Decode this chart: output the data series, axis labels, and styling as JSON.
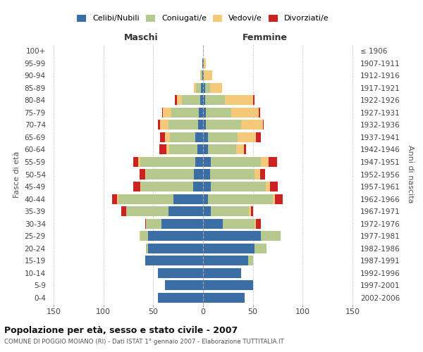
{
  "age_groups": [
    "0-4",
    "5-9",
    "10-14",
    "15-19",
    "20-24",
    "25-29",
    "30-34",
    "35-39",
    "40-44",
    "45-49",
    "50-54",
    "55-59",
    "60-64",
    "65-69",
    "70-74",
    "75-79",
    "80-84",
    "85-89",
    "90-94",
    "95-99",
    "100+"
  ],
  "year_ranges": [
    "2002-2006",
    "1997-2001",
    "1992-1996",
    "1987-1991",
    "1982-1986",
    "1977-1981",
    "1972-1976",
    "1967-1971",
    "1962-1966",
    "1957-1961",
    "1952-1956",
    "1947-1951",
    "1942-1946",
    "1937-1941",
    "1932-1936",
    "1927-1931",
    "1922-1926",
    "1917-1921",
    "1912-1916",
    "1907-1911",
    "≤ 1906"
  ],
  "maschi": {
    "celibe": [
      45,
      38,
      45,
      58,
      55,
      55,
      42,
      35,
      30,
      10,
      9,
      8,
      6,
      8,
      5,
      4,
      3,
      2,
      1,
      1,
      0
    ],
    "coniugato": [
      0,
      0,
      0,
      0,
      2,
      8,
      15,
      42,
      55,
      52,
      48,
      55,
      28,
      25,
      30,
      28,
      18,
      5,
      1,
      0,
      0
    ],
    "vedovo": [
      0,
      0,
      0,
      0,
      0,
      1,
      0,
      0,
      1,
      1,
      1,
      2,
      3,
      5,
      8,
      8,
      5,
      2,
      1,
      0,
      0
    ],
    "divorziato": [
      0,
      0,
      0,
      0,
      0,
      0,
      1,
      5,
      5,
      7,
      6,
      5,
      7,
      5,
      2,
      1,
      2,
      0,
      0,
      0,
      0
    ]
  },
  "femmine": {
    "nubile": [
      42,
      50,
      38,
      45,
      52,
      58,
      20,
      8,
      5,
      8,
      7,
      8,
      5,
      5,
      3,
      3,
      2,
      2,
      1,
      1,
      0
    ],
    "coniugata": [
      0,
      0,
      0,
      5,
      12,
      20,
      32,
      38,
      65,
      55,
      45,
      50,
      28,
      30,
      35,
      25,
      20,
      5,
      0,
      0,
      0
    ],
    "vedova": [
      0,
      0,
      0,
      0,
      0,
      0,
      1,
      2,
      2,
      4,
      5,
      8,
      8,
      18,
      22,
      28,
      28,
      12,
      8,
      2,
      0
    ],
    "divorziata": [
      0,
      0,
      0,
      0,
      0,
      0,
      5,
      2,
      8,
      8,
      5,
      8,
      2,
      5,
      1,
      1,
      2,
      0,
      0,
      0,
      0
    ]
  },
  "colors": {
    "celibe": "#3a6ea5",
    "coniugato": "#b5c98e",
    "vedovo": "#f5c97a",
    "divorziato": "#cc2222"
  },
  "xlim": 155,
  "title": "Popolazione per età, sesso e stato civile - 2007",
  "subtitle": "COMUNE DI POGGIO MOIANO (RI) - Dati ISTAT 1° gennaio 2007 - Elaborazione TUTTITALIA.IT",
  "ylabel_left": "Fasce di età",
  "ylabel_right": "Anni di nascita",
  "label_maschi": "Maschi",
  "label_femmine": "Femmine",
  "legend": [
    "Celibi/Nubili",
    "Coniugati/e",
    "Vedovi/e",
    "Divorziati/e"
  ],
  "bg_color": "#ffffff",
  "grid_color": "#cccccc",
  "xticks": [
    -150,
    -100,
    -50,
    0,
    50,
    100,
    150
  ]
}
